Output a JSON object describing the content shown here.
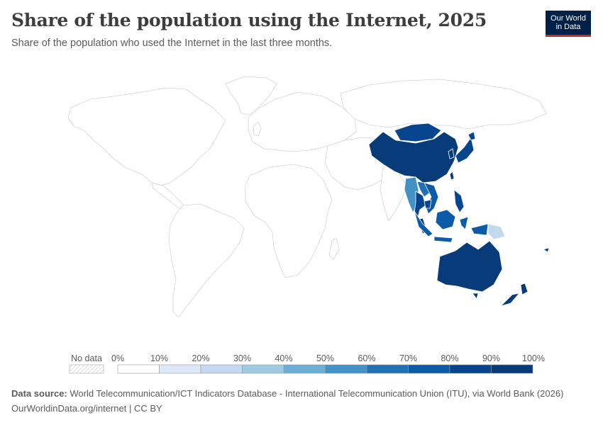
{
  "header": {
    "title": "Share of the population using the Internet, 2025",
    "subtitle": "Share of the population who used the Internet in the last three months."
  },
  "logo": {
    "line1": "Our World",
    "line2": "in Data"
  },
  "legend": {
    "no_data_label": "No data",
    "ticks": [
      "0%",
      "10%",
      "20%",
      "30%",
      "40%",
      "50%",
      "60%",
      "70%",
      "80%",
      "90%",
      "100%"
    ],
    "colors": [
      "#ffffff",
      "#dde9f6",
      "#c3d9ee",
      "#9ecae1",
      "#6baed6",
      "#4292c6",
      "#2171b5",
      "#0c5ba8",
      "#08458f",
      "#073b7a"
    ]
  },
  "footer": {
    "source_label": "Data source:",
    "source_text": "World Telecommunication/ICT Indicators Database - International Telecommunication Union (ITU), via World Bank (2026)",
    "url": "OurWorldinData.org/internet | CC BY"
  },
  "chart_data": {
    "type": "choropleth",
    "title": "Share of the population using the Internet, 2025",
    "year": 2025,
    "unit": "%",
    "scale": [
      0,
      10,
      20,
      30,
      40,
      50,
      60,
      70,
      80,
      90,
      100
    ],
    "regions": [
      {
        "name": "Mongolia",
        "bin": "80-90%"
      },
      {
        "name": "China",
        "bin": "90-100%"
      },
      {
        "name": "Japan",
        "bin": "80-90%"
      },
      {
        "name": "South Korea",
        "bin": "90-100%"
      },
      {
        "name": "Myanmar",
        "bin": "50-60%"
      },
      {
        "name": "Thailand",
        "bin": "80-90%"
      },
      {
        "name": "Laos",
        "bin": "60-70%"
      },
      {
        "name": "Vietnam",
        "bin": "70-80%"
      },
      {
        "name": "Cambodia",
        "bin": "80-90%"
      },
      {
        "name": "Malaysia",
        "bin": "90-100%"
      },
      {
        "name": "Philippines",
        "bin": "80-90%"
      },
      {
        "name": "Indonesia",
        "bin": "70-80%"
      },
      {
        "name": "Papua New Guinea",
        "bin": "20-30%"
      },
      {
        "name": "Australia",
        "bin": "90-100%"
      },
      {
        "name": "New Zealand",
        "bin": "90-100%"
      }
    ]
  }
}
